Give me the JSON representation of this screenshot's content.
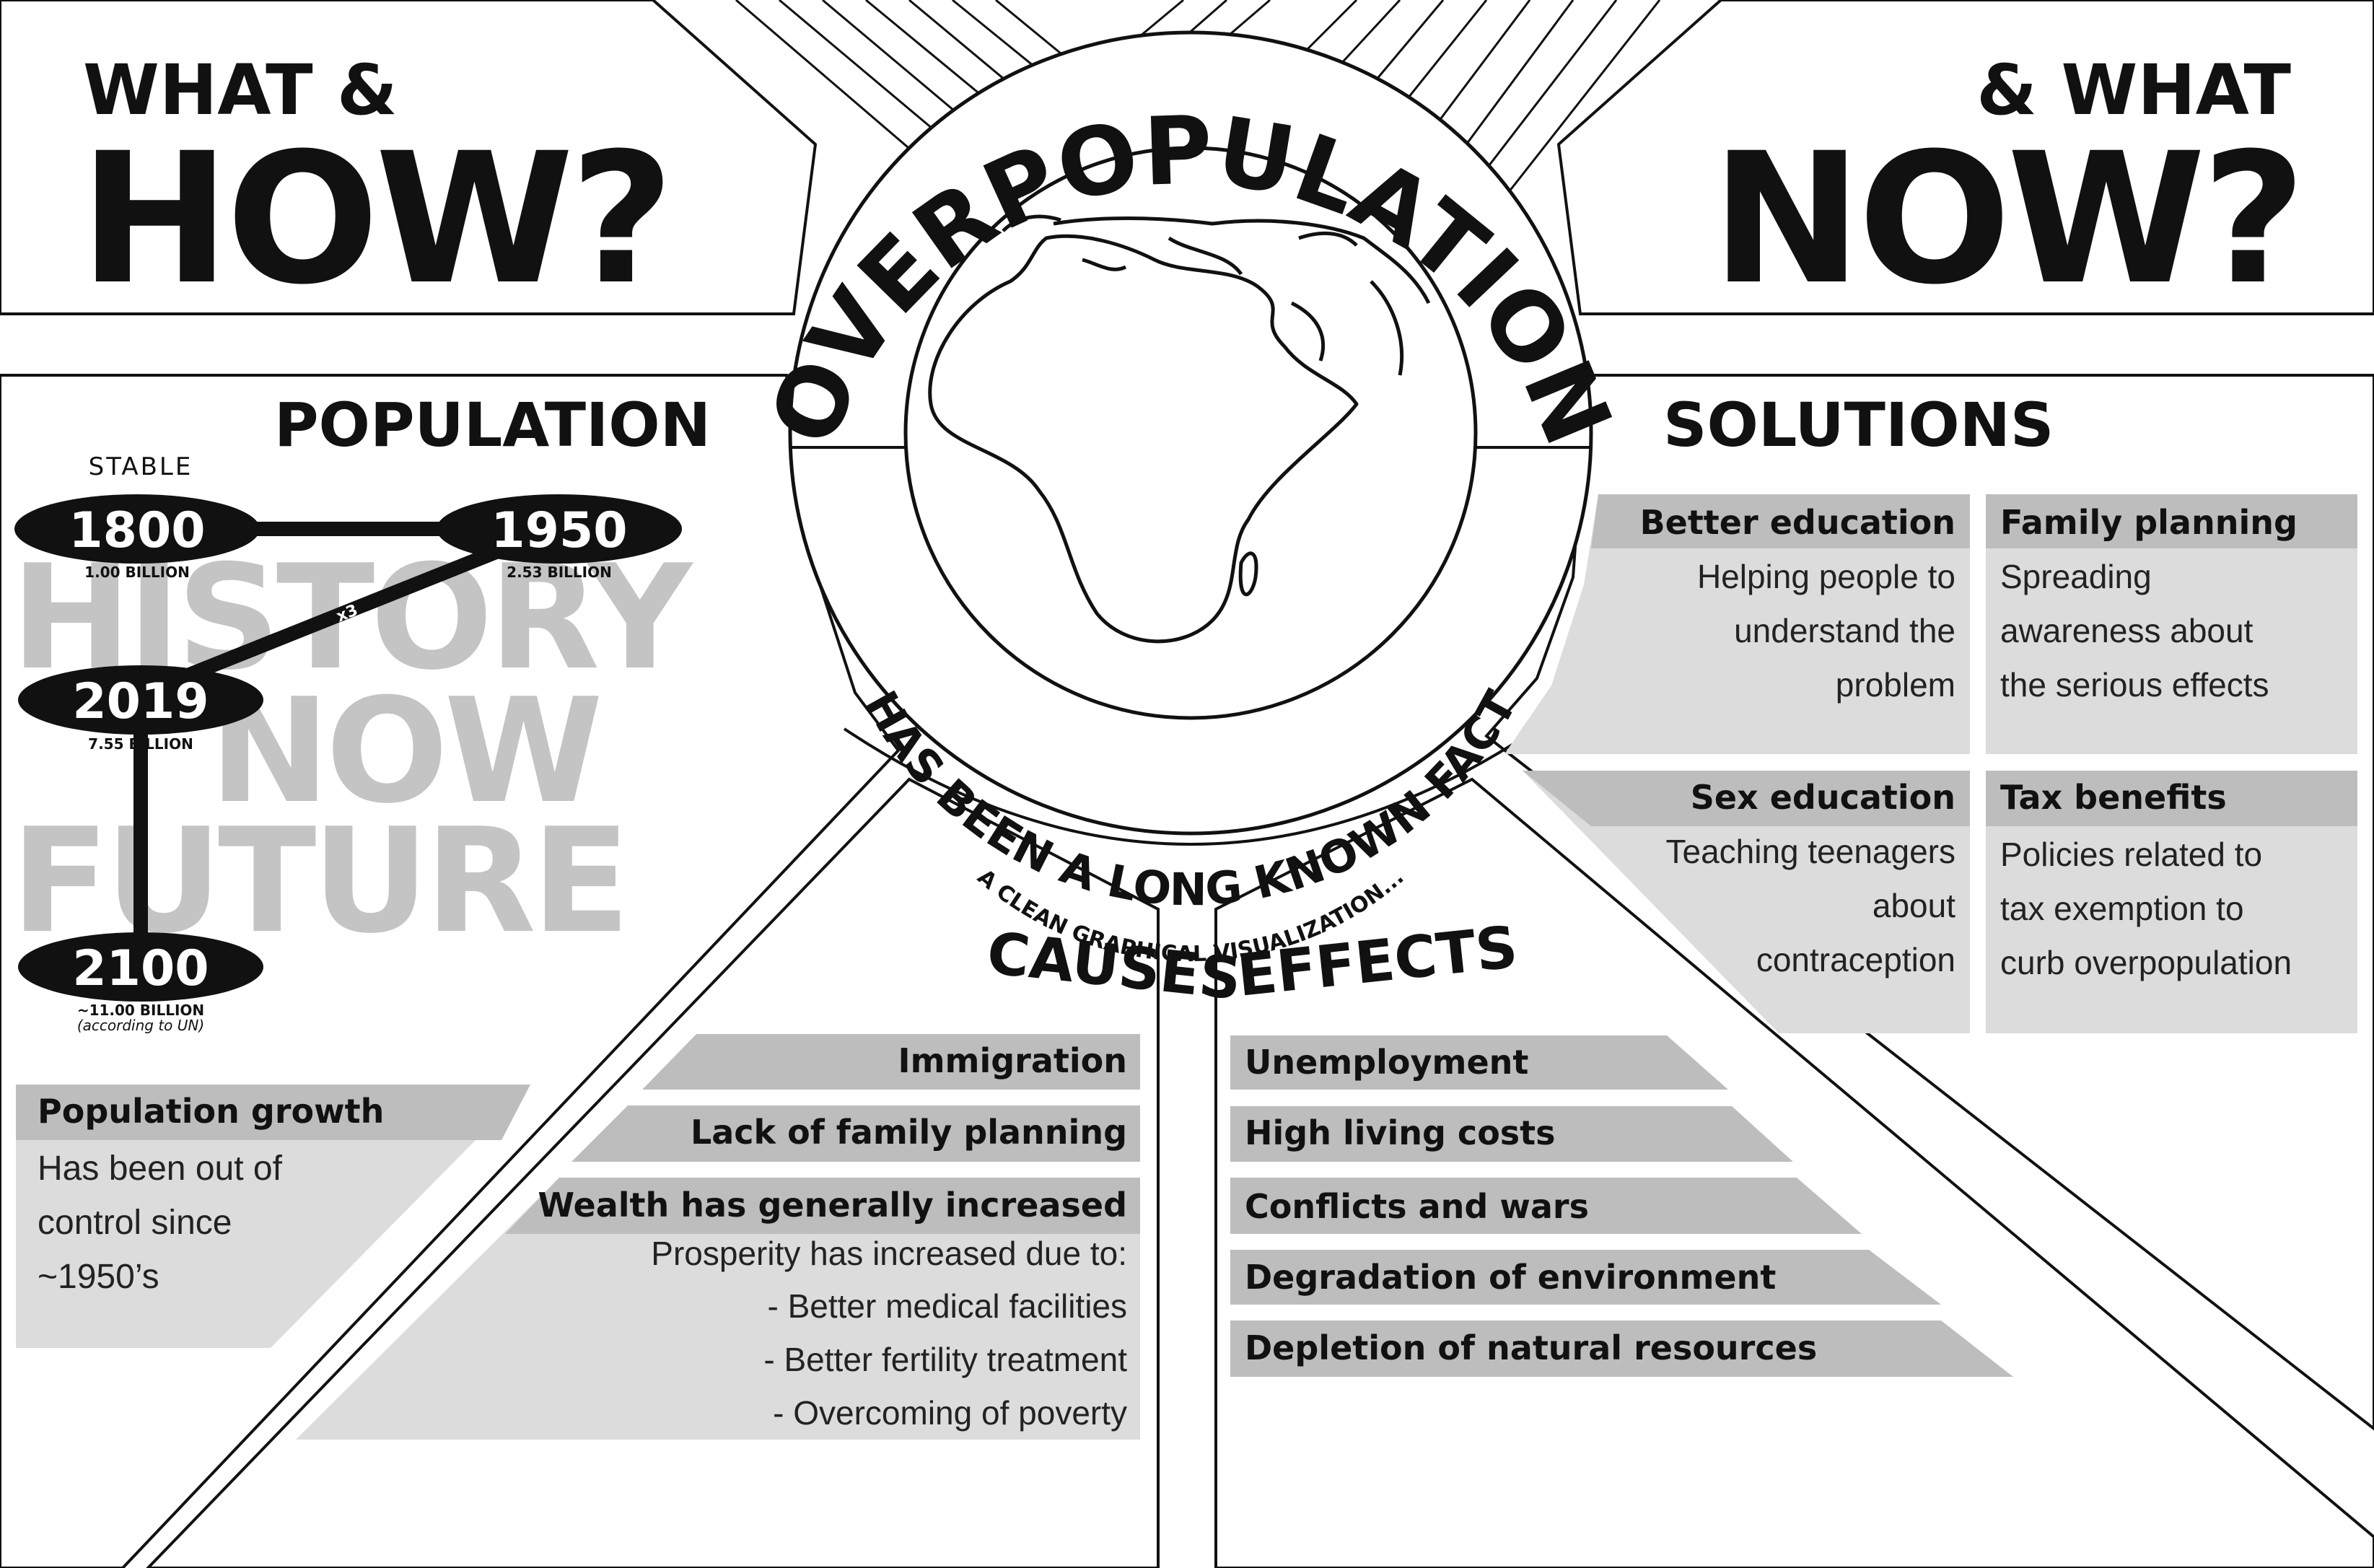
{
  "header": {
    "left_small": "WHAT &",
    "left_big": "HOW?",
    "right_small": "& WHAT",
    "right_big": "NOW?"
  },
  "center": {
    "title": "OVERPOPULATION",
    "subtitle": "HAS BEEN A LONG KNOWN FACT",
    "tagline": "A CLEAN GRAPHICAL VISUALIZATION..."
  },
  "population": {
    "heading": "POPULATION",
    "stable_label": "STABLE",
    "multiplier_label": "x3",
    "background_words": [
      "HISTORY",
      "NOW",
      "FUTURE"
    ],
    "milestones": [
      {
        "year": "1800",
        "value": "1.00 BILLION"
      },
      {
        "year": "1950",
        "value": "2.53 BILLION"
      },
      {
        "year": "2019",
        "value": "7.55 BILLION"
      },
      {
        "year": "2100",
        "value": "~11.00 BILLION",
        "note": "(according to UN)"
      }
    ],
    "growth_box": {
      "title": "Population growth",
      "lines": [
        "Has been out of",
        "control since",
        "~1950’s"
      ]
    }
  },
  "causes": {
    "heading": "CAUSES",
    "items": [
      "Immigration",
      "Lack of family planning",
      "Wealth has generally increased"
    ],
    "detail_lines": [
      "Prosperity has increased due to:",
      "- Better medical facilities",
      "- Better fertility treatment",
      "- Overcoming of poverty"
    ]
  },
  "effects": {
    "heading": "EFFECTS",
    "items": [
      "Unemployment",
      "High living costs",
      "Conflicts and wars",
      "Degradation of environment",
      "Depletion of natural resources"
    ]
  },
  "solutions": {
    "heading": "SOLUTIONS",
    "cards": [
      {
        "title": "Better education",
        "lines": [
          "Helping people to",
          "understand the",
          "problem"
        ]
      },
      {
        "title": "Family planning",
        "lines": [
          "Spreading",
          "awareness about",
          "the serious effects"
        ]
      },
      {
        "title": "Sex education",
        "lines": [
          "Teaching teenagers",
          "about",
          "contraception"
        ]
      },
      {
        "title": "Tax benefits",
        "lines": [
          "Policies related to",
          "tax exemption to",
          "curb overpopulation"
        ]
      }
    ]
  },
  "colors": {
    "ink": "#111111",
    "panel_light": "#dcdcdc",
    "panel_dark": "#bdbdbd",
    "ghost_text": "#c4c4c4"
  }
}
